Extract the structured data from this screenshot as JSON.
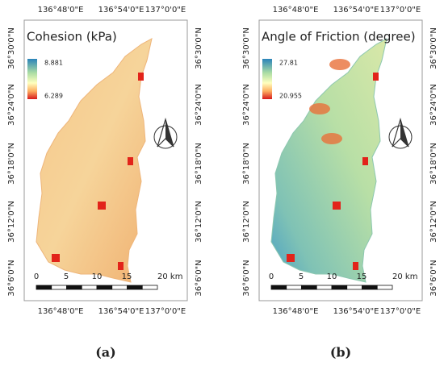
{
  "panels": [
    {
      "title": "Cohesion (kPa)",
      "legend": {
        "max": "8.881",
        "min": "6.289"
      },
      "top_labels": [
        "136°48'0\"E",
        "136°54'0\"E",
        "137°0'0\"E"
      ],
      "bottom_labels": [
        "136°48'0\"E",
        "136°54'0\"E",
        "137°0'0\"E"
      ],
      "left_labels": [
        "36°30'0\"N",
        "36°24'0\"N",
        "36°18'0\"N",
        "36°12'0\"N",
        "36°6'0\"N"
      ],
      "right_labels": [
        "36°30'0\"N",
        "36°24'0\"N",
        "36°18'0\"N",
        "36°12'0\"N",
        "36°6'0\"N"
      ],
      "scale": [
        "0",
        "5",
        "10",
        "15",
        "20 km"
      ],
      "caption": "(a)"
    },
    {
      "title": "Angle of Friction (degree)",
      "legend": {
        "max": "27.81",
        "min": "20.955"
      },
      "top_labels": [
        "136°48'0\"E",
        "136°54'0\"E",
        "137°0'0\"E"
      ],
      "bottom_labels": [
        "136°48'0\"E",
        "136°54'0\"E",
        "137°0'0\"E"
      ],
      "left_labels": [
        "36°30'0\"N",
        "36°24'0\"N",
        "36°18'0\"N",
        "36°12'0\"N",
        "36°6'0\"N"
      ],
      "right_labels": [
        "36°30'0\"N",
        "36°24'0\"N",
        "36°18'0\"N",
        "36°12'0\"N",
        "36°6'0\"N"
      ],
      "scale": [
        "0",
        "5",
        "10",
        "15",
        "20 km"
      ],
      "caption": "(b)"
    }
  ]
}
